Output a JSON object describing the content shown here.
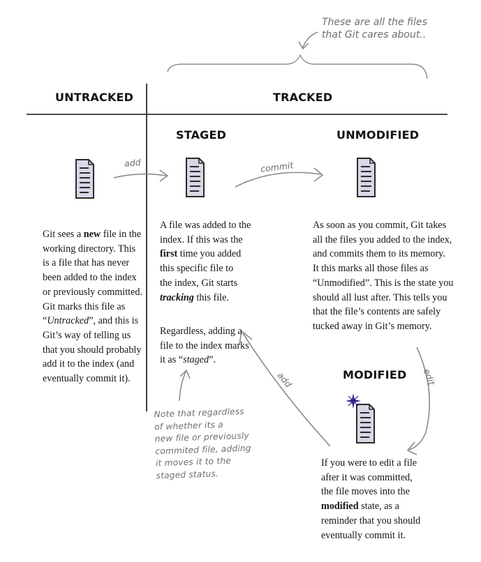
{
  "annotation_top": {
    "line1": "These are all the files",
    "line2": "that Git cares about.."
  },
  "headers": {
    "untracked": "UNTRACKED",
    "tracked": "TRACKED",
    "staged": "STAGED",
    "unmodified": "UNMODIFIED",
    "modified": "MODIFIED"
  },
  "arrows": {
    "add_to_staged": "add",
    "commit": "commit",
    "edit": "edit",
    "add_back": "add"
  },
  "untracked_text": {
    "l1a": "Git sees a ",
    "l1b": "new",
    "l1c": " file in the",
    "l2": "working directory. This",
    "l3": "is a file that has never",
    "l4": "been added to the index",
    "l5": "or previously committed.",
    "l6": "Git marks this file as",
    "l7a": "“",
    "l7b": "Untracked",
    "l7c": "”, and this is",
    "l8": "Git’s way of telling us",
    "l9": "that you should probably",
    "l10": "add it to the index (and",
    "l11": "eventually commit it)."
  },
  "staged_text": {
    "l1": "A file was added to the",
    "l2": "index. If this was the",
    "l3a": "first",
    "l3b": " time you added",
    "l4": "this specific file to",
    "l5": "the index,  Git starts",
    "l6a": "tracking",
    "l6b": " this file."
  },
  "staged_text2": {
    "l1": "Regardless, adding a",
    "l2": "file to the index marks",
    "l3a": "it as “",
    "l3b": "staged",
    "l3c": "”."
  },
  "unmodified_text": {
    "l1": "As soon as you commit, Git takes",
    "l2": "all the files you added to the index,",
    "l3": "and commits them to its memory.",
    "l4": "It this marks all those files as",
    "l5": "“Unmodified”. This is the state you",
    "l6": "should all lust after. This tells you",
    "l7": "that the file’s contents are safely",
    "l8": "tucked away in Git’s memory."
  },
  "modified_text": {
    "l1": "If you were to edit a file",
    "l2": "after it was committed,",
    "l3": "the file moves into the",
    "l4a": "modified",
    "l4b": " state, as a",
    "l5": "reminder that you should",
    "l6": "eventually commit it."
  },
  "note_bottom": {
    "l1": "Note that regardless",
    "l2": "of whether its a",
    "l3": "new file or previously",
    "l4": "commited file, adding",
    "l5": "it moves it to the",
    "l6": "staged status."
  },
  "icons": {
    "file": "document-icon",
    "star": "sparkle-icon"
  },
  "colors": {
    "file_fill": "#d9d7e6",
    "file_stroke": "#2a2a2a",
    "arrow": "#8a8a8a",
    "star": "#3b1f8a"
  }
}
